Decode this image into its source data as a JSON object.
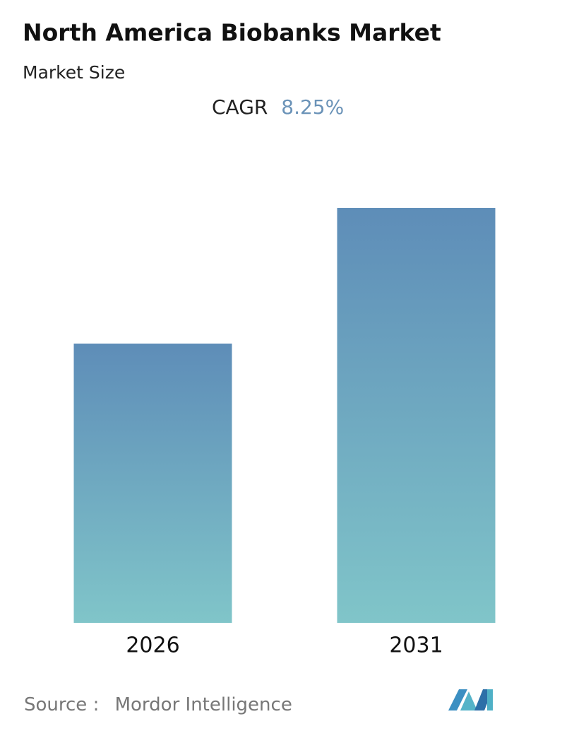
{
  "chart_data": {
    "type": "bar",
    "title": "North America Biobanks Market",
    "subtitle": "Market Size",
    "cagr_label": "CAGR",
    "cagr_value": "8.25%",
    "categories": [
      "2026",
      "2031"
    ],
    "values": [
      100,
      148.6
    ],
    "gradient": [
      "#5e8db8",
      "#80c5c9"
    ],
    "ylim": [
      0,
      150
    ],
    "source_label": "Source :",
    "source": "Mordor Intelligence"
  }
}
